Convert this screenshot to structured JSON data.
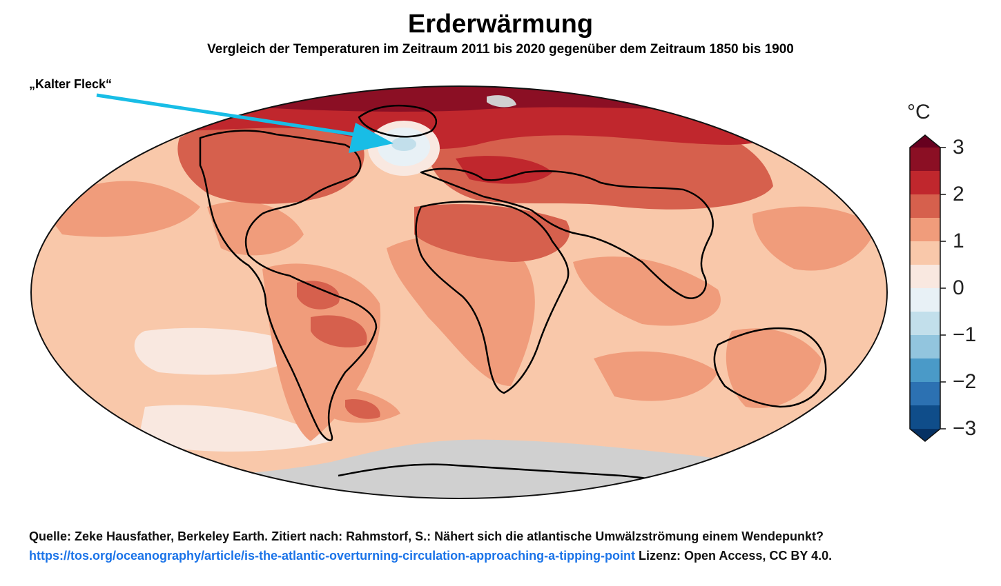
{
  "title": "Erderwärmung",
  "subtitle": "Vergleich der Temperaturen im Zeitraum 2011 bis 2020 gegenüber dem Zeitraum 1850 bis 1900",
  "annotation": "„Kalter Fleck“",
  "colorbar": {
    "unit": "°C",
    "ticks": [
      "3",
      "2",
      "1",
      "0",
      "−1",
      "−2",
      "−3"
    ],
    "bands": [
      {
        "range": "> 3",
        "color": "#67001f"
      },
      {
        "range": "2.5–3",
        "color": "#8b0f24"
      },
      {
        "range": "2–2.5",
        "color": "#c0272d"
      },
      {
        "range": "1.5–2",
        "color": "#d6604d"
      },
      {
        "range": "1–1.5",
        "color": "#f09c7b"
      },
      {
        "range": "0.5–1",
        "color": "#f9c8aa"
      },
      {
        "range": "0–0.5",
        "color": "#f9e8e0"
      },
      {
        "range": "-0.5–0",
        "color": "#e8f1f6"
      },
      {
        "range": "-1–-0.5",
        "color": "#c2dfeb"
      },
      {
        "range": "-1.5–-1",
        "color": "#92c5de"
      },
      {
        "range": "-2–-1.5",
        "color": "#4a9ac8"
      },
      {
        "range": "-2.5–-2",
        "color": "#2c71b2"
      },
      {
        "range": "-3–-2.5",
        "color": "#0f4d8a"
      },
      {
        "range": "< -3",
        "color": "#063163"
      }
    ]
  },
  "colors": {
    "arrow": "#18bde6",
    "no_data": "#d0d0d0",
    "link": "#1a73e8"
  },
  "footer": {
    "source": "Quelle: Zeke Hausfather, Berkeley Earth. Zitiert nach: Rahmstorf, S.: Nähert sich die atlantische Umwälzströmung einem Wendepunkt?",
    "url": "https://tos.org/oceanography/article/is-the-atlantic-overturning-circulation-approaching-a-tipping-point",
    "license": " Lizenz: Open Access, CC BY 4.0."
  }
}
